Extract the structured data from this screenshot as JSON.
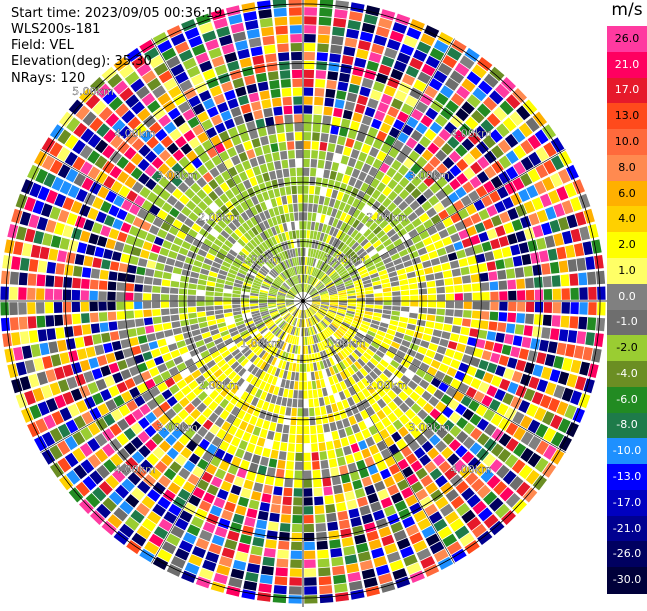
{
  "header": {
    "start_time": "Start time: 2023/09/05 00:36:19",
    "station": "WLS200s-181",
    "field": "Field: VEL",
    "elevation": "Elevation(deg): 35.30",
    "nrays": "NRays: 120"
  },
  "colorbar": {
    "unit": "m/s",
    "ticks": [
      "26.0",
      "21.0",
      "17.0",
      "13.0",
      "10.0",
      "8.0",
      "6.0",
      "4.0",
      "2.0",
      "1.0",
      "0.0",
      "-1.0",
      "-2.0",
      "-4.0",
      "-6.0",
      "-8.0",
      "-10.0",
      "-13.0",
      "-17.0",
      "-21.0",
      "-26.0",
      "-30.0"
    ],
    "colors": [
      "#ff3aa0",
      "#ff0060",
      "#e6192b",
      "#ff4a1c",
      "#ff6a3c",
      "#ff8a50",
      "#ffb000",
      "#ffd000",
      "#ffff00",
      "#ffff66",
      "#808080",
      "#6e6e6e",
      "#9acd32",
      "#6b8e23",
      "#228b22",
      "#1e7b4a",
      "#1e90ff",
      "#0000ff",
      "#0000c0",
      "#000090",
      "#000060",
      "#00003a"
    ]
  },
  "chart_data": {
    "type": "heatmap",
    "title": "",
    "field": "VEL",
    "unit": "m/s",
    "elevation_deg": 35.3,
    "nrays": 120,
    "range_rings_km": [
      1.0,
      2.0,
      3.0,
      4.0,
      5.0
    ],
    "ring_labels": {
      "1": [
        "1.00km",
        "1.00km",
        "1.00km",
        "1.00km"
      ],
      "2": [
        "2.00km",
        "2.00km",
        "2.00km",
        "2.00km"
      ],
      "3": [
        "3.00km",
        "3.00km",
        "3.00km",
        "3.00km"
      ],
      "4": [
        "4.00km",
        "4.00km",
        "4.00km",
        "4.00km"
      ],
      "5": [
        "5.00km"
      ]
    },
    "max_range_km": 5.1,
    "value_range": [
      -30,
      26
    ],
    "pattern": "inner region (<~3 km): north-west sector about -1 to -2 m/s (green), south / east sector about +1 to +2 m/s (yellow), grey near 0; beyond ~3 km mostly noise covering full color range"
  }
}
